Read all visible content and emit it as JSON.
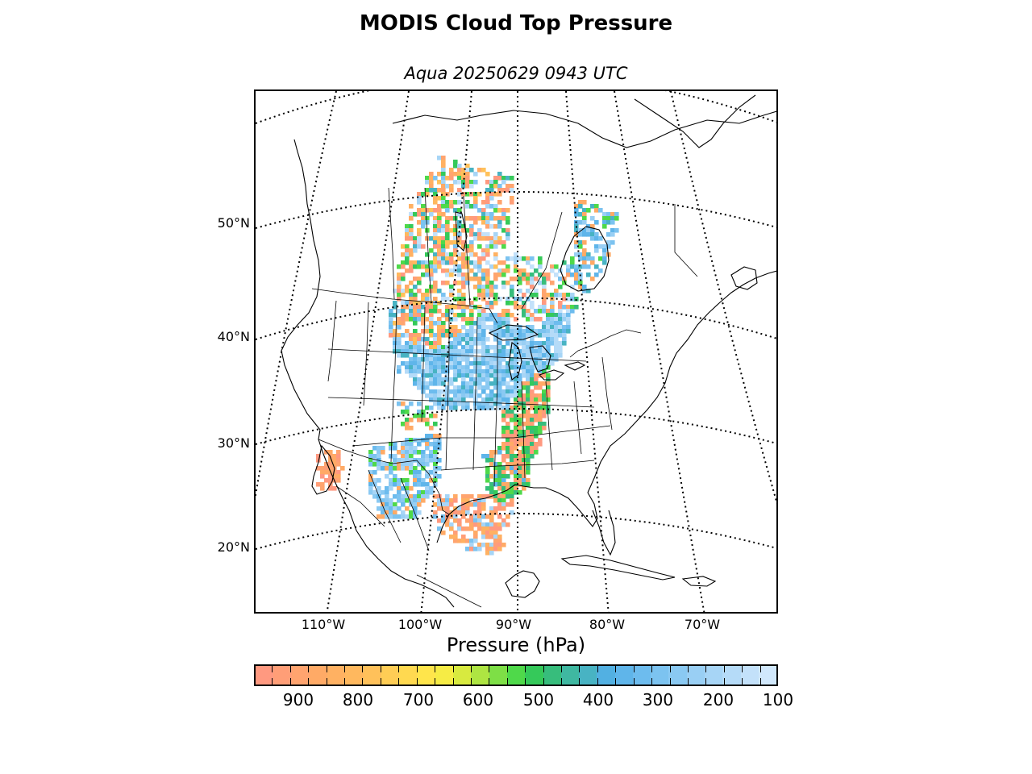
{
  "header": {
    "title": "MODIS Cloud Top Pressure",
    "subtitle": "Aqua 20250629 0943 UTC"
  },
  "map": {
    "projection": "conic (Lambert-like)",
    "lat_labels": [
      "50°N",
      "40°N",
      "30°N",
      "20°N"
    ],
    "lon_labels": [
      "110°W",
      "100°W",
      "90°W",
      "80°W",
      "70°W"
    ],
    "graticule_style": "dotted",
    "coastline_color": "#000000"
  },
  "colorbar": {
    "title": "Pressure (hPa)",
    "tick_labels": [
      "900",
      "800",
      "700",
      "600",
      "500",
      "400",
      "300",
      "200",
      "100"
    ],
    "range": [
      975,
      100
    ],
    "colors": [
      "#ff9980",
      "#ff9e77",
      "#ffa46f",
      "#ffaa66",
      "#ffb162",
      "#ffb85e",
      "#ffc15a",
      "#ffcd55",
      "#ffd950",
      "#ffe54b",
      "#f6ec45",
      "#d8ea3f",
      "#aee542",
      "#7edf46",
      "#4fd94a",
      "#35c95a",
      "#37bd7c",
      "#3fb8a1",
      "#48b3c3",
      "#52b0e2",
      "#5fb5ea",
      "#6dbcee",
      "#7cc3f0",
      "#8ac9f2",
      "#99cff4",
      "#a7d5f6",
      "#b5dbf8",
      "#c3e1fa",
      "#d1e8fc"
    ]
  },
  "chart_data": {
    "type": "heatmap",
    "title": "MODIS Cloud Top Pressure",
    "subtitle": "Aqua 20250629 0943 UTC",
    "colorbar_label": "Pressure (hPa)",
    "colorbar_ticks": [
      900,
      800,
      700,
      600,
      500,
      400,
      300,
      200,
      100
    ],
    "value_range": [
      975,
      100
    ],
    "lat_ticks": [
      "50°N",
      "40°N",
      "30°N",
      "20°N"
    ],
    "lon_ticks": [
      "110°W",
      "100°W",
      "90°W",
      "80°W",
      "70°W"
    ]
  }
}
